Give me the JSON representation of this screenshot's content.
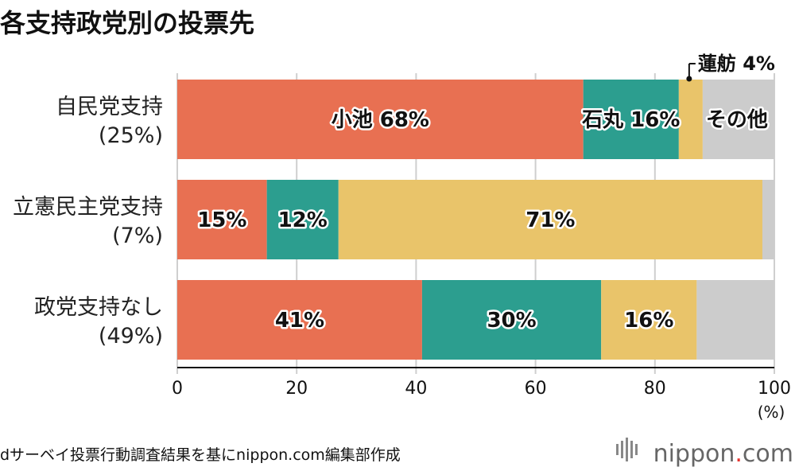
{
  "title": "各支持政党別の投票先",
  "chart_data": {
    "type": "bar",
    "orientation": "horizontal",
    "stacked": true,
    "categories": [
      {
        "label": "自民党支持",
        "share": "(25%)"
      },
      {
        "label": "立憲民主党支持",
        "share": "(7%)"
      },
      {
        "label": "政党支持なし",
        "share": "(49%)"
      }
    ],
    "series": [
      {
        "name": "小池",
        "color": "#e87052",
        "values": [
          68,
          15,
          41
        ]
      },
      {
        "name": "石丸",
        "color": "#2c9e8f",
        "values": [
          16,
          12,
          30
        ]
      },
      {
        "name": "蓮舫",
        "color": "#e9c46a",
        "values": [
          4,
          71,
          16
        ]
      },
      {
        "name": "その他",
        "color": "#cccccc",
        "values": [
          12,
          2,
          13
        ]
      }
    ],
    "data_labels": [
      [
        "小池 68%",
        "石丸 16%",
        "",
        "その他"
      ],
      [
        "15%",
        "12%",
        "71%",
        ""
      ],
      [
        "41%",
        "30%",
        "16%",
        ""
      ]
    ],
    "callout": "蓮舫 4%",
    "xlim": [
      0,
      100
    ],
    "x_ticks": [
      "0",
      "20",
      "40",
      "60",
      "80",
      "100"
    ],
    "xunit": "(%)",
    "grid": true
  },
  "footer": {
    "source": "dサーベイ投票行動調査結果を基にnippon.com編集部作成",
    "brand": "nippon",
    "brand_dot": ".",
    "brand_suffix": "com",
    "brand_dot_color": "#e6322d"
  }
}
